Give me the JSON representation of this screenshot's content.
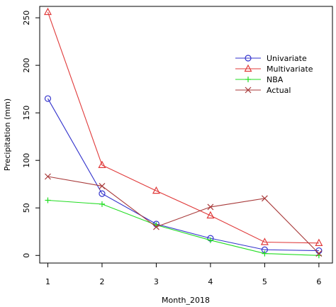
{
  "chart_data": {
    "type": "line",
    "xlabel": "Month_2018",
    "ylabel": "Precipitation (mm)",
    "x": [
      1,
      2,
      3,
      4,
      5,
      6
    ],
    "x_ticks": [
      1,
      2,
      3,
      4,
      5,
      6
    ],
    "y_ticks": [
      0,
      50,
      100,
      150,
      200,
      250
    ],
    "xlim": [
      0.85,
      6.25
    ],
    "ylim": [
      -8,
      262
    ],
    "grid": false,
    "legend_position": "top-right",
    "series": [
      {
        "name": "Univariate",
        "color": "#3333cc",
        "marker": "circle",
        "values": [
          165,
          65,
          33,
          18,
          6,
          5
        ]
      },
      {
        "name": "Multivariate",
        "color": "#e03a3a",
        "marker": "triangle",
        "values": [
          256,
          95,
          68,
          42,
          14,
          13
        ]
      },
      {
        "name": "NBA",
        "color": "#22dd22",
        "marker": "plus",
        "values": [
          58,
          54,
          32,
          16,
          2,
          0
        ]
      },
      {
        "name": "Actual",
        "color": "#a83a3a",
        "marker": "x",
        "values": [
          83,
          73,
          30,
          51,
          60,
          2
        ]
      }
    ]
  }
}
